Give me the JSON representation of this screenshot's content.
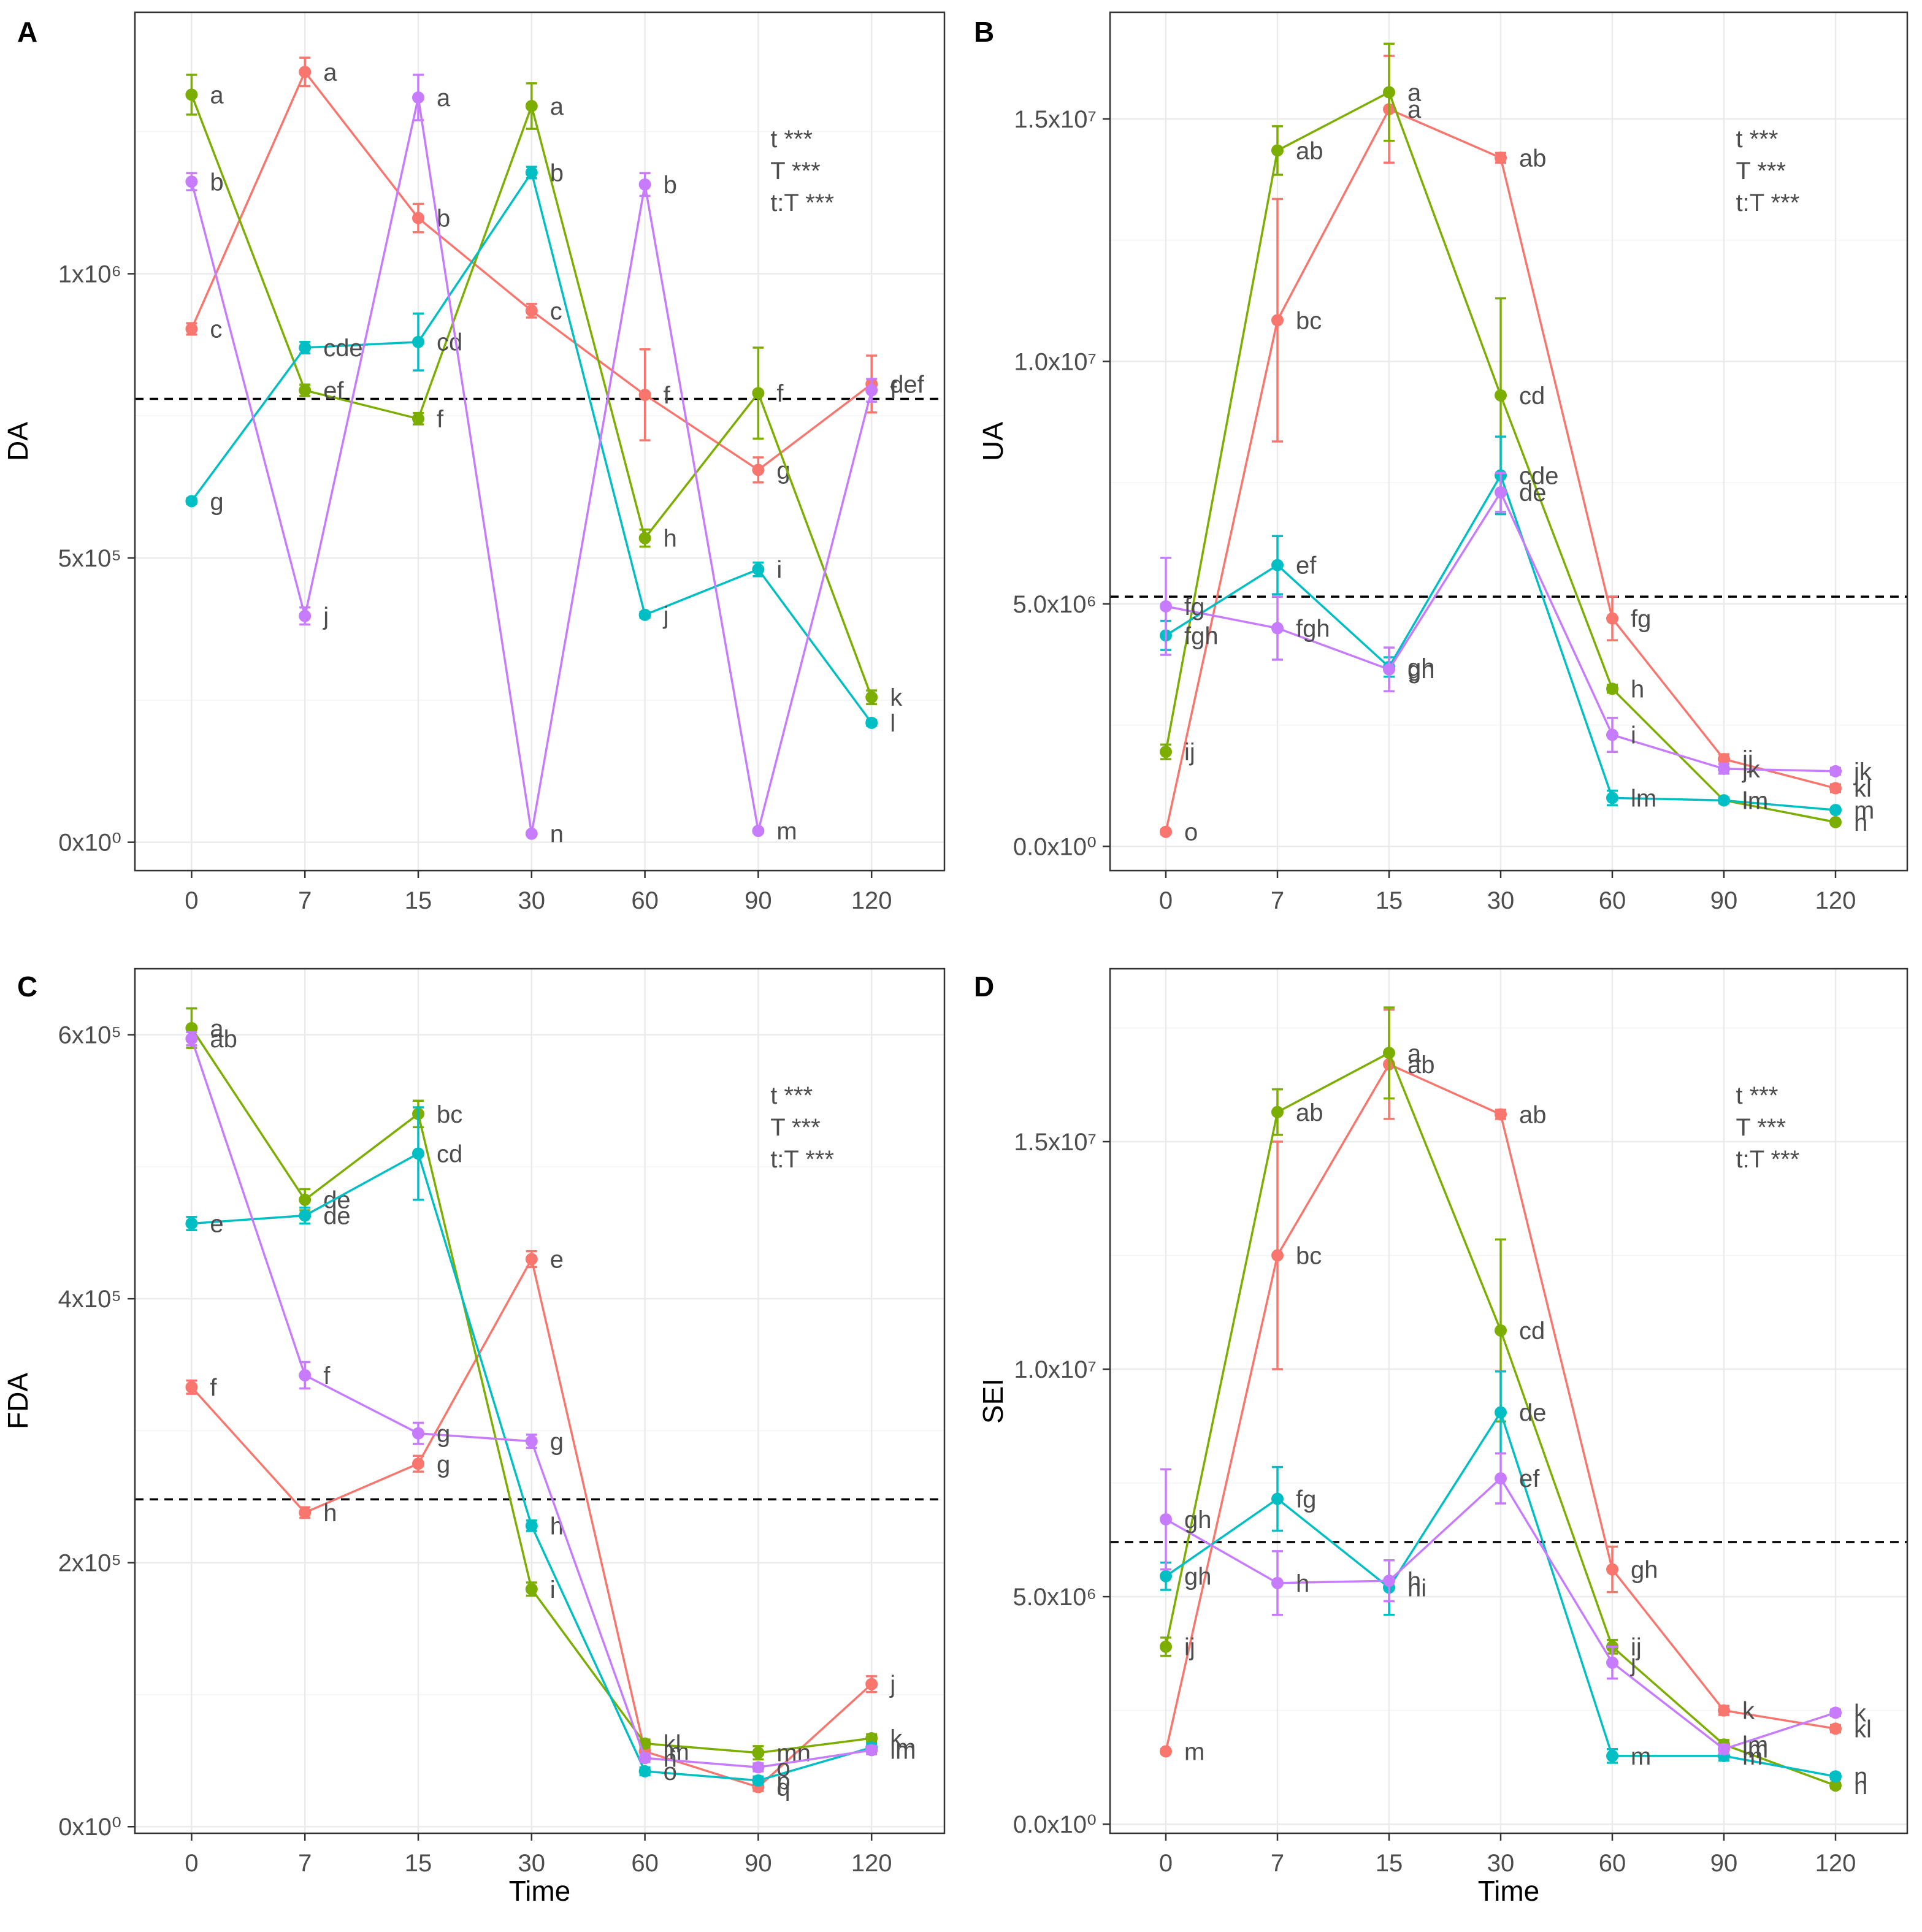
{
  "colors": {
    "red": "#f8766d",
    "green": "#7cae00",
    "cyan": "#00bfc4",
    "purple": "#c77cff"
  },
  "chart_data": [
    {
      "type": "line",
      "panel": "A",
      "ylabel": "DA",
      "xlabel": "",
      "categories": [
        "0",
        "7",
        "15",
        "30",
        "60",
        "90",
        "120"
      ],
      "ylim": [
        -50000,
        1460000
      ],
      "yticks": [
        0,
        500000,
        1000000
      ],
      "ytick_labels": [
        "0x10⁰",
        "5x10⁵",
        "1x10⁶"
      ],
      "reference_line": 780000,
      "significance": [
        "t ***",
        "T ***",
        "t:T ***"
      ],
      "series": [
        {
          "name": "red",
          "color": "#f8766d",
          "values": [
            903000,
            1355000,
            1098000,
            935000,
            787000,
            655000,
            806000
          ],
          "errors": [
            10000,
            25000,
            25000,
            12000,
            80000,
            22000,
            50000
          ],
          "letters": [
            "c",
            "a",
            "b",
            "c",
            "f",
            "g",
            "def"
          ]
        },
        {
          "name": "green",
          "color": "#7cae00",
          "values": [
            1315000,
            795000,
            745000,
            1295000,
            535000,
            790000,
            255000
          ],
          "errors": [
            35000,
            10000,
            10000,
            40000,
            15000,
            80000,
            12000
          ],
          "letters": [
            "a",
            "ef",
            "f",
            "a",
            "h",
            "f",
            "k"
          ]
        },
        {
          "name": "cyan",
          "color": "#00bfc4",
          "values": [
            600000,
            870000,
            880000,
            1178000,
            400000,
            480000,
            210000
          ],
          "errors": [
            5000,
            10000,
            50000,
            10000,
            5000,
            12000,
            5000
          ],
          "letters": [
            "g",
            "cde",
            "cd",
            "b",
            "j",
            "i",
            "l"
          ]
        },
        {
          "name": "purple",
          "color": "#c77cff",
          "values": [
            1162000,
            398000,
            1310000,
            15000,
            1157000,
            20000,
            795000
          ],
          "errors": [
            15000,
            15000,
            40000,
            3000,
            20000,
            3000,
            20000
          ],
          "letters": [
            "b",
            "j",
            "a",
            "n",
            "b",
            "m",
            "f"
          ]
        }
      ]
    },
    {
      "type": "line",
      "panel": "B",
      "ylabel": "UA",
      "xlabel": "",
      "categories": [
        "0",
        "7",
        "15",
        "30",
        "60",
        "90",
        "120"
      ],
      "ylim": [
        -500000,
        17200000
      ],
      "yticks": [
        0,
        5000000,
        10000000,
        15000000
      ],
      "ytick_labels": [
        "0.0x10⁰",
        "5.0x10⁶",
        "1.0x10⁷",
        "1.5x10⁷"
      ],
      "reference_line": 5150000,
      "significance": [
        "t ***",
        "T ***",
        "t:T ***"
      ],
      "series": [
        {
          "name": "red",
          "color": "#f8766d",
          "values": [
            300000,
            10850000,
            15200000,
            14200000,
            4700000,
            1800000,
            1200000
          ],
          "errors": [
            50000,
            2500000,
            1100000,
            100000,
            450000,
            100000,
            80000
          ],
          "letters": [
            "o",
            "bc",
            "a",
            "ab",
            "fg",
            "ij",
            "kl"
          ]
        },
        {
          "name": "green",
          "color": "#7cae00",
          "values": [
            1950000,
            14350000,
            15550000,
            9300000,
            3250000,
            950000,
            500000
          ],
          "errors": [
            150000,
            500000,
            1000000,
            2000000,
            80000,
            60000,
            40000
          ],
          "letters": [
            "ij",
            "ab",
            "a",
            "cd",
            "h",
            "lm",
            "n"
          ]
        },
        {
          "name": "cyan",
          "color": "#00bfc4",
          "values": [
            4350000,
            5800000,
            3700000,
            7650000,
            1000000,
            950000,
            750000
          ],
          "errors": [
            300000,
            600000,
            200000,
            800000,
            150000,
            60000,
            40000
          ],
          "letters": [
            "fgh",
            "ef",
            "gh",
            "cde",
            "lm",
            "lm",
            "m"
          ]
        },
        {
          "name": "purple",
          "color": "#c77cff",
          "values": [
            4950000,
            4500000,
            3650000,
            7300000,
            2300000,
            1600000,
            1550000
          ],
          "errors": [
            1000000,
            650000,
            450000,
            400000,
            350000,
            100000,
            70000
          ],
          "letters": [
            "fg",
            "fgh",
            "gh",
            "de",
            "i",
            "jk",
            "jk"
          ]
        }
      ]
    },
    {
      "type": "line",
      "panel": "C",
      "ylabel": "FDA",
      "xlabel": "Time",
      "categories": [
        "0",
        "7",
        "15",
        "30",
        "60",
        "90",
        "120"
      ],
      "ylim": [
        -5000,
        650000
      ],
      "yticks": [
        0,
        200000,
        400000,
        600000
      ],
      "ytick_labels": [
        "0x10⁰",
        "2x10⁵",
        "4x10⁵",
        "6x10⁵"
      ],
      "reference_line": 248000,
      "significance": [
        "t ***",
        "T ***",
        "t:T ***"
      ],
      "series": [
        {
          "name": "red",
          "color": "#f8766d",
          "values": [
            333000,
            238000,
            275000,
            430000,
            57000,
            30000,
            108000
          ],
          "errors": [
            5000,
            4000,
            6000,
            6000,
            3000,
            3000,
            6000
          ],
          "letters": [
            "f",
            "h",
            "g",
            "e",
            "lm",
            "q",
            "j"
          ]
        },
        {
          "name": "green",
          "color": "#7cae00",
          "values": [
            605000,
            475000,
            540000,
            180000,
            63000,
            56000,
            67000
          ],
          "errors": [
            15000,
            8000,
            10000,
            5000,
            3000,
            5000,
            3000
          ],
          "letters": [
            "a",
            "de",
            "bc",
            "i",
            "kl",
            "mn",
            "k"
          ]
        },
        {
          "name": "cyan",
          "color": "#00bfc4",
          "values": [
            457000,
            463000,
            510000,
            228000,
            42000,
            35000,
            60000
          ],
          "errors": [
            5000,
            6000,
            35000,
            4000,
            3000,
            3000,
            3000
          ],
          "letters": [
            "e",
            "de",
            "cd",
            "h",
            "o",
            "p",
            "lm"
          ]
        },
        {
          "name": "purple",
          "color": "#c77cff",
          "values": [
            597000,
            342000,
            298000,
            292000,
            52000,
            45000,
            58000
          ],
          "errors": [
            5000,
            10000,
            8000,
            5000,
            3000,
            3000,
            3000
          ],
          "letters": [
            "ab",
            "f",
            "g",
            "g",
            "n",
            "o",
            "lm"
          ]
        }
      ]
    },
    {
      "type": "line",
      "panel": "D",
      "ylabel": "SEI",
      "xlabel": "Time",
      "categories": [
        "0",
        "7",
        "15",
        "30",
        "60",
        "90",
        "120"
      ],
      "ylim": [
        -200000,
        18800000
      ],
      "yticks": [
        0,
        5000000,
        10000000,
        15000000
      ],
      "ytick_labels": [
        "0.0x10⁰",
        "5.0x10⁶",
        "1.0x10⁷",
        "1.5x10⁷"
      ],
      "reference_line": 6200000,
      "significance": [
        "t ***",
        "T ***",
        "t:T ***"
      ],
      "series": [
        {
          "name": "red",
          "color": "#f8766d",
          "values": [
            1600000,
            12500000,
            16700000,
            15600000,
            5600000,
            2500000,
            2100000
          ],
          "errors": [
            50000,
            2500000,
            1200000,
            100000,
            500000,
            100000,
            80000
          ],
          "letters": [
            "m",
            "bc",
            "ab",
            "ab",
            "gh",
            "k",
            "kl"
          ]
        },
        {
          "name": "green",
          "color": "#7cae00",
          "values": [
            3900000,
            15650000,
            16950000,
            10850000,
            3900000,
            1750000,
            850000
          ],
          "errors": [
            200000,
            500000,
            1000000,
            2000000,
            150000,
            100000,
            60000
          ],
          "letters": [
            "ij",
            "ab",
            "a",
            "cd",
            "ij",
            "lm",
            "n"
          ]
        },
        {
          "name": "cyan",
          "color": "#00bfc4",
          "values": [
            5450000,
            7150000,
            5200000,
            9050000,
            1500000,
            1500000,
            1050000
          ],
          "errors": [
            300000,
            700000,
            600000,
            900000,
            150000,
            100000,
            60000
          ],
          "letters": [
            "gh",
            "fg",
            "hi",
            "de",
            "m",
            "m",
            "n"
          ]
        },
        {
          "name": "purple",
          "color": "#c77cff",
          "values": [
            6700000,
            5300000,
            5350000,
            7600000,
            3550000,
            1650000,
            2450000
          ],
          "errors": [
            1100000,
            700000,
            450000,
            550000,
            350000,
            100000,
            70000
          ],
          "letters": [
            "gh",
            "h",
            "h",
            "ef",
            "j",
            "lm",
            "k"
          ]
        }
      ]
    }
  ]
}
